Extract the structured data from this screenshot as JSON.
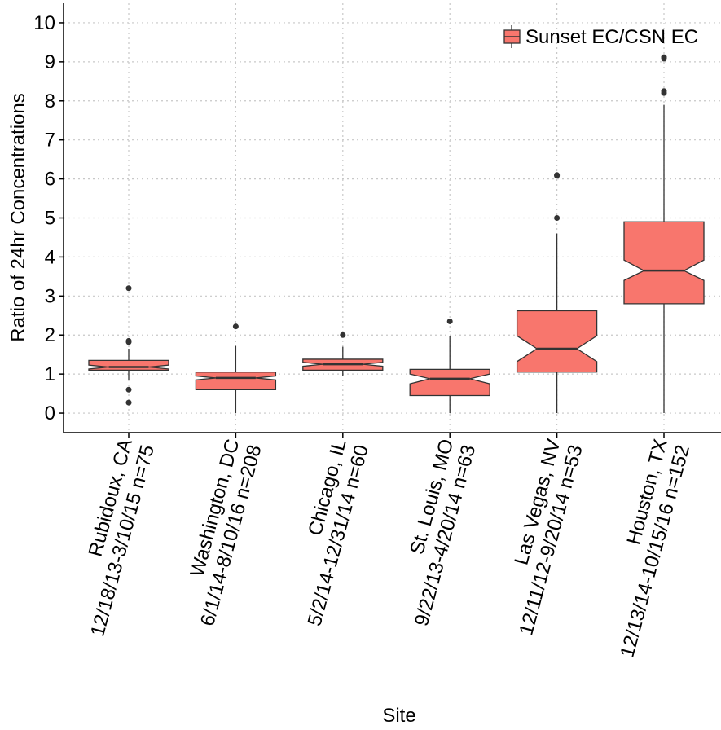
{
  "chart_data": {
    "type": "boxplot",
    "x_label": "Site",
    "y_label": "Ratio of 24hr Concentrations",
    "categories": [
      [
        "Rubidoux, CA",
        "12/18/13-3/10/15 n=75"
      ],
      [
        "Washington, DC",
        "6/1/14-8/10/16 n=208"
      ],
      [
        "Chicago, IL",
        "5/2/14-12/31/14 n=60"
      ],
      [
        "St. Louis, MO",
        "9/22/13-4/20/14 n=63"
      ],
      [
        "Las Vegas, NV",
        "12/11/12-9/20/14 n=53"
      ],
      [
        "Houston, TX",
        "12/13/14-10/15/16 n=152"
      ]
    ],
    "series": [
      {
        "name": "Sunset EC/CSN EC",
        "color": "#f8766d",
        "boxes": [
          {
            "min": 0.85,
            "q1": 1.1,
            "median": 1.18,
            "q3": 1.35,
            "max": 1.65,
            "notch_low": 1.13,
            "notch_high": 1.23,
            "outliers": [
              0.27,
              0.6,
              1.82,
              1.85,
              3.2
            ]
          },
          {
            "min": 0,
            "q1": 0.6,
            "median": 0.9,
            "q3": 1.05,
            "max": 1.72,
            "notch_low": 0.85,
            "notch_high": 0.95,
            "outliers": [
              2.22
            ]
          },
          {
            "min": 0.95,
            "q1": 1.1,
            "median": 1.25,
            "q3": 1.38,
            "max": 1.7,
            "notch_low": 1.2,
            "notch_high": 1.3,
            "outliers": [
              2.0
            ]
          },
          {
            "min": 0,
            "q1": 0.45,
            "median": 0.88,
            "q3": 1.12,
            "max": 1.97,
            "notch_low": 0.75,
            "notch_high": 1.0,
            "outliers": [
              2.35
            ]
          },
          {
            "min": 0,
            "q1": 1.05,
            "median": 1.65,
            "q3": 2.62,
            "max": 4.6,
            "notch_low": 1.32,
            "notch_high": 1.98,
            "outliers": [
              5.0,
              6.08,
              6.1
            ]
          },
          {
            "min": 0,
            "q1": 2.8,
            "median": 3.65,
            "q3": 4.9,
            "max": 7.9,
            "notch_low": 3.4,
            "notch_high": 3.92,
            "outliers": [
              8.2,
              8.25,
              9.08,
              9.12
            ]
          }
        ]
      }
    ],
    "ylim": [
      -0.5,
      10.5
    ],
    "yticks": [
      0,
      1,
      2,
      3,
      4,
      5,
      6,
      7,
      8,
      9,
      10
    ],
    "grid": true,
    "legend": "top-right"
  }
}
